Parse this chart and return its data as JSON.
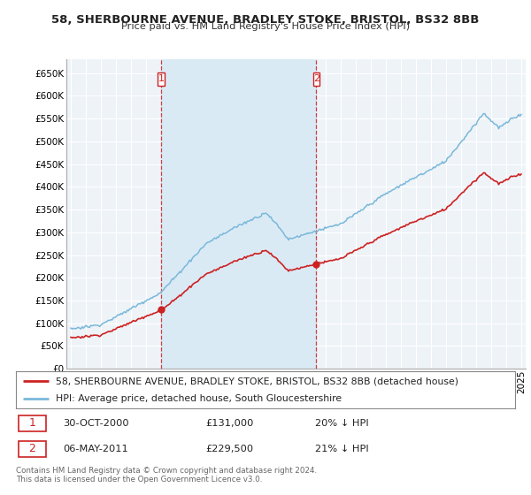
{
  "title1": "58, SHERBOURNE AVENUE, BRADLEY STOKE, BRISTOL, BS32 8BB",
  "title2": "Price paid vs. HM Land Registry's House Price Index (HPI)",
  "ytick_values": [
    0,
    50000,
    100000,
    150000,
    200000,
    250000,
    300000,
    350000,
    400000,
    450000,
    500000,
    550000,
    600000,
    650000
  ],
  "ylim": [
    0,
    680000
  ],
  "xlim_start": 1994.7,
  "xlim_end": 2025.3,
  "hpi_color": "#7ab8d9",
  "price_color": "#cc2222",
  "vline_color": "#cc2222",
  "shade_color": "#daeaf5",
  "background_color": "#eef3f8",
  "grid_color": "#ffffff",
  "legend_label1": "58, SHERBOURNE AVENUE, BRADLEY STOKE, BRISTOL, BS32 8BB (detached house)",
  "legend_label2": "HPI: Average price, detached house, South Gloucestershire",
  "purchase1_date": "30-OCT-2000",
  "purchase1_price": "£131,000",
  "purchase1_hpi": "20% ↓ HPI",
  "purchase1_x": 2001.0,
  "purchase1_y": 131000,
  "purchase2_date": "06-MAY-2011",
  "purchase2_price": "£229,500",
  "purchase2_hpi": "21% ↓ HPI",
  "purchase2_x": 2011.35,
  "purchase2_y": 229500,
  "footer": "Contains HM Land Registry data © Crown copyright and database right 2024.\nThis data is licensed under the Open Government Licence v3.0."
}
